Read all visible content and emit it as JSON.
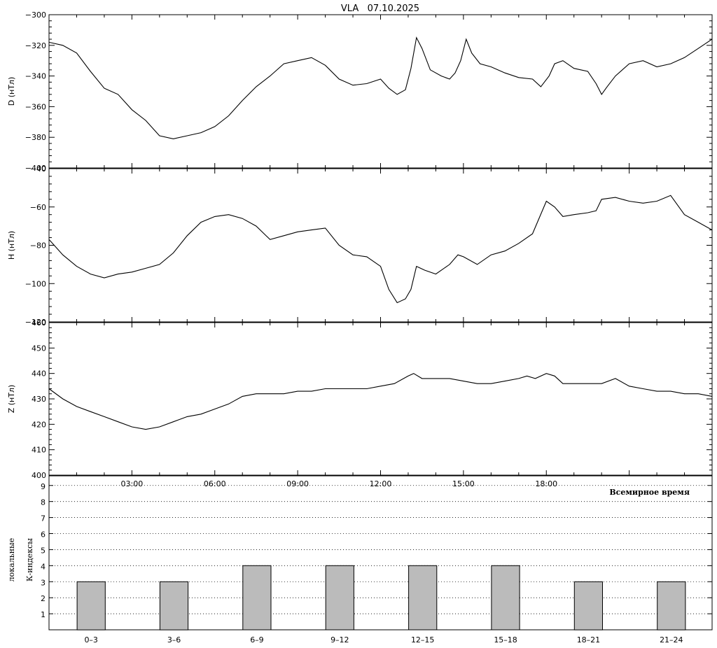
{
  "title": "VLA   07.10.2025",
  "chart_data": [
    {
      "type": "line",
      "ylabel": "D (нТл)",
      "ylim": [
        -400,
        -300
      ],
      "yticks": [
        -300,
        -320,
        -340,
        -360,
        -380,
        -400
      ],
      "xlim": [
        0,
        24
      ],
      "x": [
        0,
        0.5,
        1,
        1.5,
        2,
        2.5,
        3,
        3.5,
        4,
        4.5,
        5,
        5.5,
        6,
        6.5,
        7,
        7.5,
        8,
        8.5,
        9,
        9.5,
        10,
        10.5,
        11,
        11.5,
        12,
        12.3,
        12.6,
        12.9,
        13.1,
        13.3,
        13.5,
        13.8,
        14.2,
        14.5,
        14.7,
        14.9,
        15.1,
        15.3,
        15.6,
        16,
        16.5,
        17,
        17.5,
        17.8,
        18.1,
        18.3,
        18.6,
        19,
        19.5,
        19.8,
        20,
        20.2,
        20.5,
        21,
        21.5,
        22,
        22.5,
        23,
        23.5,
        24
      ],
      "values": [
        -318,
        -320,
        -325,
        -337,
        -348,
        -352,
        -362,
        -369,
        -379,
        -381,
        -379,
        -377,
        -373,
        -366,
        -356,
        -347,
        -340,
        -332,
        -330,
        -328,
        -333,
        -342,
        -346,
        -345,
        -342,
        -348,
        -352,
        -349,
        -335,
        -315,
        -322,
        -336,
        -340,
        -342,
        -338,
        -330,
        -316,
        -325,
        -332,
        -334,
        -338,
        -341,
        -342,
        -347,
        -340,
        -332,
        -330,
        -335,
        -337,
        -345,
        -352,
        -347,
        -340,
        -332,
        -330,
        -334,
        -332,
        -328,
        -322,
        -316
      ]
    },
    {
      "type": "line",
      "ylabel": "H (нТл)",
      "ylim": [
        -120,
        -40
      ],
      "yticks": [
        -40,
        -60,
        -80,
        -100,
        -120
      ],
      "xlim": [
        0,
        24
      ],
      "x": [
        0,
        0.5,
        1,
        1.5,
        2,
        2.5,
        3,
        3.5,
        4,
        4.5,
        5,
        5.5,
        6,
        6.5,
        7,
        7.5,
        8,
        8.5,
        9,
        9.5,
        10,
        10.5,
        11,
        11.5,
        12,
        12.3,
        12.6,
        12.9,
        13.1,
        13.3,
        13.6,
        14,
        14.5,
        14.8,
        15,
        15.5,
        16,
        16.5,
        17,
        17.5,
        18,
        18.3,
        18.6,
        19,
        19.5,
        19.8,
        20,
        20.5,
        21,
        21.5,
        22,
        22.5,
        23,
        23.5,
        24
      ],
      "values": [
        -77,
        -85,
        -91,
        -95,
        -97,
        -95,
        -94,
        -92,
        -90,
        -84,
        -75,
        -68,
        -65,
        -64,
        -66,
        -70,
        -77,
        -75,
        -73,
        -72,
        -71,
        -80,
        -85,
        -86,
        -91,
        -103,
        -110,
        -108,
        -103,
        -91,
        -93,
        -95,
        -90,
        -85,
        -86,
        -90,
        -85,
        -83,
        -79,
        -74,
        -57,
        -60,
        -65,
        -64,
        -63,
        -62,
        -56,
        -55,
        -57,
        -58,
        -57,
        -54,
        -64,
        -68,
        -72
      ]
    },
    {
      "type": "line",
      "ylabel": "Z (нТл)",
      "ylim": [
        400,
        460
      ],
      "yticks": [
        400,
        410,
        420,
        430,
        440,
        450,
        460
      ],
      "xlim": [
        0,
        24
      ],
      "xticks": [
        "03:00",
        "06:00",
        "09:00",
        "12:00",
        "15:00",
        "18:00"
      ],
      "xlabel": "Всемирное время",
      "x": [
        0,
        0.5,
        1,
        1.5,
        2,
        2.5,
        3,
        3.5,
        4,
        4.5,
        5,
        5.5,
        6,
        6.5,
        7,
        7.5,
        8,
        8.5,
        9,
        9.5,
        10,
        10.5,
        11,
        11.5,
        12,
        12.5,
        13,
        13.2,
        13.5,
        14,
        14.5,
        15,
        15.5,
        16,
        16.5,
        17,
        17.3,
        17.6,
        18,
        18.3,
        18.6,
        19,
        19.5,
        20,
        20.5,
        21,
        21.5,
        22,
        22.5,
        23,
        23.5,
        24
      ],
      "values": [
        434,
        430,
        427,
        425,
        423,
        421,
        419,
        418,
        419,
        421,
        423,
        424,
        426,
        428,
        431,
        432,
        432,
        432,
        433,
        433,
        434,
        434,
        434,
        434,
        435,
        436,
        439,
        440,
        438,
        438,
        438,
        437,
        436,
        436,
        437,
        438,
        439,
        438,
        440,
        439,
        436,
        436,
        436,
        436,
        438,
        435,
        434,
        433,
        433,
        432,
        432,
        431
      ]
    },
    {
      "type": "bar",
      "ylabel_line1": "локальные",
      "ylabel_line2": "К-индексы",
      "ylim": [
        0,
        9.6
      ],
      "yticks": [
        1,
        2,
        3,
        4,
        5,
        6,
        7,
        8,
        9
      ],
      "categories": [
        "0–3",
        "3–6",
        "6–9",
        "9–12",
        "12–15",
        "15–18",
        "18–21",
        "21–24"
      ],
      "values": [
        3,
        3,
        4,
        4,
        4,
        4,
        3,
        3
      ]
    }
  ]
}
